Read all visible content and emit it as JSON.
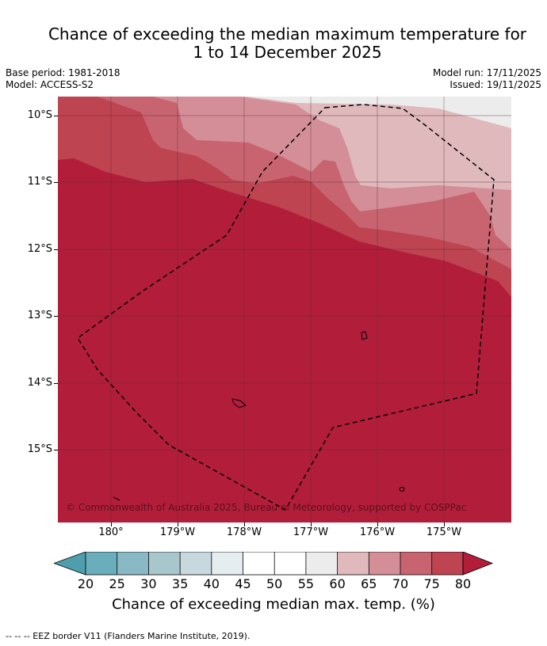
{
  "title_line1": "Chance of exceeding the median maximum temperature for",
  "title_line2": "1 to 14 December 2025",
  "meta": {
    "base_period": "Base period: 1981-2018",
    "model": "Model: ACCESS-S2",
    "model_run": "Model run: 17/11/2025",
    "issued": "Issued: 19/11/2025"
  },
  "axes": {
    "lat_labels": [
      "10°S",
      "11°S",
      "12°S",
      "13°S",
      "14°S",
      "15°S"
    ],
    "lon_labels": [
      "180°",
      "179°W",
      "178°W",
      "177°W",
      "176°W",
      "175°W"
    ]
  },
  "copyright": "© Commonwealth of Australia 2025, Bureau of Meteorology, supported by COSPPac",
  "colorbar": {
    "labels": [
      "20",
      "25",
      "30",
      "35",
      "40",
      "45",
      "50",
      "55",
      "60",
      "65",
      "70",
      "75",
      "80"
    ],
    "colors": {
      "below_20": "#4e9eae",
      "c20_25": "#6aaebb",
      "c25_30": "#89b9c5",
      "c30_35": "#a8c7cd",
      "c35_40": "#c7d9de",
      "c40_45": "#e6edf0",
      "c45_50": "#ffffff",
      "c50_55": "#ffffff",
      "c55_60": "#ececec",
      "c60_65": "#e0b9bd",
      "c65_70": "#d48e97",
      "c70_75": "#c86470",
      "c75_80": "#be4452",
      "above_80": "#b21e3a"
    },
    "title": "Chance of exceeding median max. temp. (%)"
  },
  "footnote": "--  --  -- EEZ border V11 (Flanders Marine Institute, 2019)."
}
